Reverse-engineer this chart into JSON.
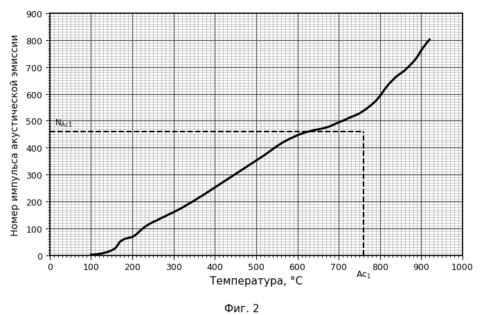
{
  "title": "",
  "xlabel": "Температура, °C",
  "ylabel": "Номер импульса акустической эмиссии",
  "caption": "Фиг. 2",
  "xlim": [
    0,
    1000
  ],
  "ylim": [
    0,
    900
  ],
  "xticks": [
    0,
    100,
    200,
    300,
    400,
    500,
    600,
    700,
    800,
    900,
    1000
  ],
  "yticks": [
    0,
    100,
    200,
    300,
    400,
    500,
    600,
    700,
    800,
    900
  ],
  "Ac1_x": 760,
  "NAc1_y": 460,
  "dashed_line_color": "#000000",
  "curve_color": "#000000",
  "curve_x": [
    100,
    110,
    120,
    130,
    140,
    150,
    155,
    160,
    165,
    170,
    175,
    180,
    185,
    190,
    195,
    200,
    205,
    210,
    215,
    220,
    230,
    240,
    250,
    260,
    270,
    280,
    290,
    300,
    310,
    320,
    330,
    340,
    350,
    360,
    370,
    380,
    390,
    400,
    410,
    420,
    430,
    440,
    450,
    460,
    470,
    480,
    490,
    500,
    510,
    520,
    530,
    540,
    550,
    560,
    570,
    580,
    590,
    600,
    610,
    620,
    630,
    640,
    650,
    660,
    670,
    680,
    690,
    700,
    710,
    720,
    730,
    740,
    750,
    755,
    760,
    765,
    770,
    780,
    790,
    800,
    810,
    820,
    830,
    840,
    850,
    860,
    865,
    870,
    875,
    880,
    885,
    890,
    895,
    900,
    905,
    910,
    915,
    920
  ],
  "curve_y": [
    2,
    3,
    5,
    8,
    12,
    18,
    22,
    28,
    38,
    50,
    55,
    60,
    62,
    64,
    66,
    68,
    72,
    78,
    85,
    92,
    105,
    115,
    123,
    130,
    138,
    145,
    153,
    160,
    168,
    176,
    185,
    194,
    203,
    213,
    222,
    232,
    242,
    252,
    262,
    272,
    282,
    292,
    302,
    312,
    322,
    332,
    342,
    352,
    362,
    372,
    383,
    394,
    405,
    415,
    424,
    432,
    439,
    446,
    452,
    457,
    461,
    465,
    468,
    471,
    475,
    480,
    487,
    494,
    500,
    507,
    514,
    520,
    527,
    532,
    537,
    542,
    548,
    560,
    574,
    592,
    614,
    634,
    650,
    665,
    676,
    687,
    695,
    702,
    710,
    718,
    727,
    737,
    749,
    762,
    773,
    783,
    793,
    802
  ],
  "background_color": "#ffffff",
  "grid_major_color": "#444444",
  "grid_minor_color": "#999999",
  "major_grid_linewidth": 0.9,
  "minor_grid_linewidth": 0.4,
  "curve_linewidth": 2.2,
  "dashed_linewidth": 1.5
}
